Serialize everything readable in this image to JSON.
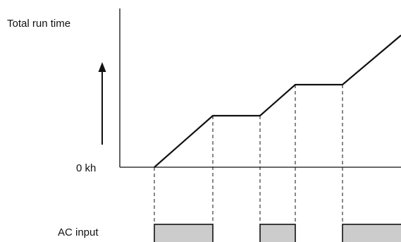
{
  "labels": {
    "y_axis_title": "Total run time",
    "zero_label": "0 kh",
    "ac_input_label": "AC input"
  },
  "colors": {
    "line": "#111111",
    "pulse_fill": "#cccccc",
    "background": "#ffffff"
  }
}
